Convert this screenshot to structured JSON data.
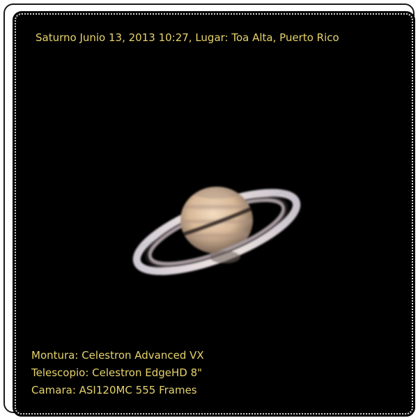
{
  "caption": {
    "title": "Saturno Junio 13, 2013 10:27, Lugar: Toa Alta, Puerto Rico",
    "mount": "Montura: Celestron Advanced VX",
    "telescope": "Telescopio: Celestron EdgeHD 8\"",
    "camera": "Camara: ASI120MC 555 Frames"
  },
  "colors": {
    "caption_text": "#e6d36a",
    "background": "#000000",
    "frame": "#1a1a1a"
  }
}
